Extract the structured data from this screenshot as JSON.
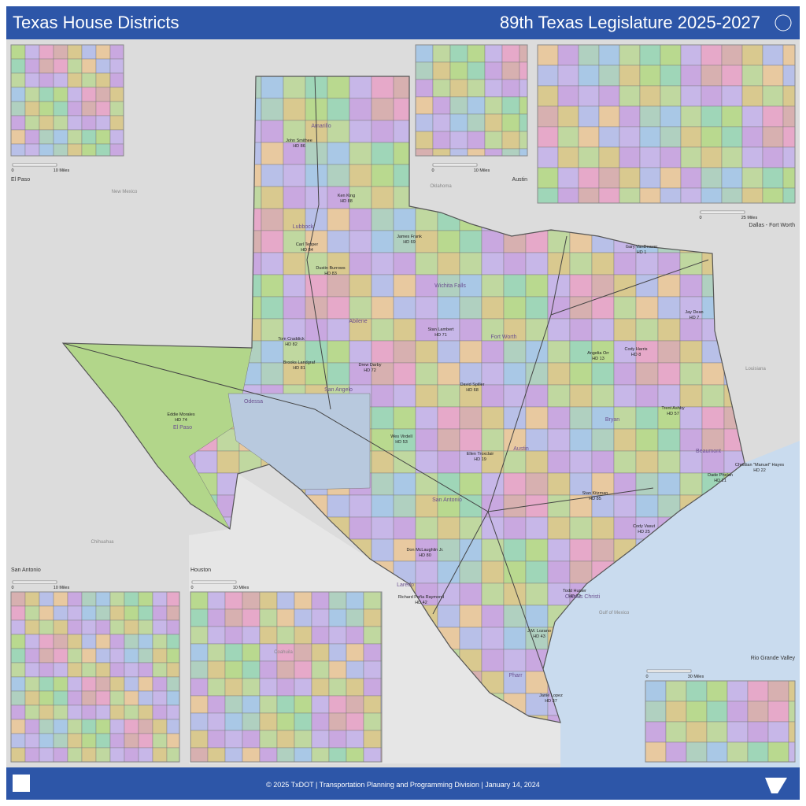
{
  "header": {
    "title": "Texas House Districts",
    "subtitle": "89th Texas Legislature 2025-2027"
  },
  "insets": [
    {
      "label": "El Paso",
      "scale_start": "0",
      "scale_end": "10 Miles"
    },
    {
      "label": "Austin",
      "scale_start": "0",
      "scale_end": "10 Miles"
    },
    {
      "label": "Dallas - Fort Worth",
      "scale_start": "0",
      "scale_end": "25 Miles"
    },
    {
      "label": "San Antonio",
      "scale_start": "0",
      "scale_end": "10 Miles"
    },
    {
      "label": "Houston",
      "scale_start": "0",
      "scale_end": "10 Miles"
    },
    {
      "label": "Rio Grande Valley",
      "scale_start": "0",
      "scale_end": "30 Miles"
    }
  ],
  "districts": [
    {
      "name": "John Smithee",
      "district": "HD 86"
    },
    {
      "name": "Ken King",
      "district": "HD 88"
    },
    {
      "name": "Carl Tepper",
      "district": "HD 84"
    },
    {
      "name": "Dustin Burrows",
      "district": "HD 83"
    },
    {
      "name": "James Frank",
      "district": "HD 69"
    },
    {
      "name": "Tom Craddick",
      "district": "HD 82"
    },
    {
      "name": "Brooks Landgraf",
      "district": "HD 81"
    },
    {
      "name": "Drew Darby",
      "district": "HD 72"
    },
    {
      "name": "Stan Lambert",
      "district": "HD 71"
    },
    {
      "name": "David Spiller",
      "district": "HD 68"
    },
    {
      "name": "Eddie Morales",
      "district": "HD 74"
    },
    {
      "name": "Wes Virdell",
      "district": "HD 53"
    },
    {
      "name": "Ellen Troxclair",
      "district": "HD 19"
    },
    {
      "name": "Don McLaughlin Jr.",
      "district": "HD 80"
    },
    {
      "name": "Richard Peña Raymond",
      "district": "HD 42"
    },
    {
      "name": "J.M. Lozano",
      "district": "HD 43"
    },
    {
      "name": "Janie Lopez",
      "district": "HD 37"
    },
    {
      "name": "Todd Hunter",
      "district": "HD 32"
    },
    {
      "name": "Gary VanDeaver",
      "district": "HD 1"
    },
    {
      "name": "Jay Dean",
      "district": "HD 7"
    },
    {
      "name": "Cody Harris",
      "district": "HD 8"
    },
    {
      "name": "Angelia Orr",
      "district": "HD 13"
    },
    {
      "name": "Trent Ashby",
      "district": "HD 57"
    },
    {
      "name": "Dade Phelan",
      "district": "HD 21"
    },
    {
      "name": "Christian \"Manuel\" Hayes",
      "district": "HD 22"
    },
    {
      "name": "Stan Kitzman",
      "district": "HD 85"
    },
    {
      "name": "Cody Vasut",
      "district": "HD 25"
    }
  ],
  "cities": [
    "Amarillo",
    "Lubbock",
    "Abilene",
    "Odessa",
    "El Paso",
    "San Angelo",
    "Wichita Falls",
    "Fort Worth",
    "Austin",
    "San Antonio",
    "Bryan",
    "Beaumont",
    "Corpus Christi",
    "Laredo",
    "Pharr"
  ],
  "regions": [
    "New Mexico",
    "Oklahoma",
    "Louisiana",
    "Gulf of Mexico",
    "Chihuahua",
    "Coahuila"
  ],
  "footer": "© 2025 TxDOT | Transportation Planning and Programming Division | January 14, 2024"
}
